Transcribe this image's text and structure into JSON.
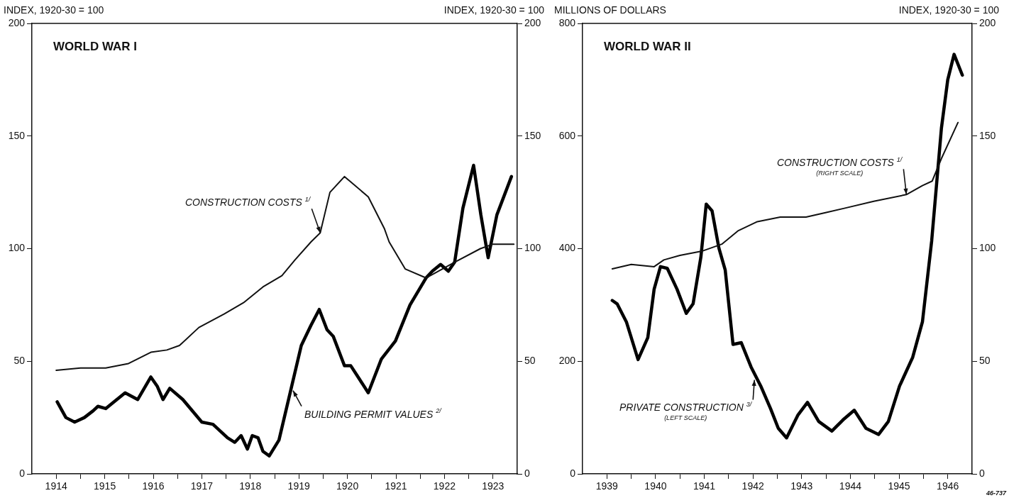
{
  "chart_data": [
    {
      "type": "line",
      "title": "WORLD WAR I",
      "ylabel": "INDEX, 1920-30 = 100",
      "y2label": "INDEX, 1920-30 = 100",
      "xlim": [
        1914,
        1924
      ],
      "xticks": [
        {
          "value": 1914.5,
          "label": "1914"
        },
        {
          "value": 1915,
          "label": null
        },
        {
          "value": 1915.5,
          "label": "1915"
        },
        {
          "value": 1916,
          "label": null
        },
        {
          "value": 1916.5,
          "label": "1916"
        },
        {
          "value": 1917,
          "label": null
        },
        {
          "value": 1917.5,
          "label": "1917"
        },
        {
          "value": 1918,
          "label": null
        },
        {
          "value": 1918.5,
          "label": "1918"
        },
        {
          "value": 1919,
          "label": null
        },
        {
          "value": 1919.5,
          "label": "1919"
        },
        {
          "value": 1920,
          "label": null
        },
        {
          "value": 1920.5,
          "label": "1920"
        },
        {
          "value": 1921,
          "label": null
        },
        {
          "value": 1921.5,
          "label": "1921"
        },
        {
          "value": 1922,
          "label": null
        },
        {
          "value": 1922.5,
          "label": "1922"
        },
        {
          "value": 1923,
          "label": null
        },
        {
          "value": 1923.5,
          "label": "1923"
        }
      ],
      "ylim": [
        0,
        200
      ],
      "yticks": [
        0,
        50,
        100,
        150,
        200
      ],
      "y2lim": [
        0,
        200
      ],
      "y2ticks": [
        0,
        50,
        100,
        150,
        200
      ],
      "annotations": [
        {
          "text": "CONSTRUCTION COSTS $^{1/}$",
          "x": 1919.94,
          "y": 107
        },
        {
          "text": "BUILDING PERMIT VALUES $^{2/}$",
          "x": 1919.38,
          "y": 37
        }
      ],
      "series": [
        {
          "color": "#111111",
          "x": [
            1914.5,
            1915,
            1915.52,
            1915.99,
            1916.45,
            1916.78,
            1917.04,
            1917.44,
            1917.96,
            1918.36,
            1918.76,
            1919.15,
            1919.42,
            1919.75,
            1919.94,
            1920.14,
            1920.44,
            1920.93,
            1921.26,
            1921.36,
            1921.69,
            1922.12,
            1922.71,
            1923.24,
            1923.5,
            1923.93
          ],
          "values": [
            46,
            47,
            47,
            49,
            54,
            55,
            57,
            65,
            71,
            76,
            83,
            88,
            95,
            103,
            107,
            125,
            132,
            123,
            109,
            103,
            91,
            87,
            94,
            100,
            102,
            102
          ]
        },
        {
          "color": "#000000",
          "x": [
            1914.52,
            1914.7,
            1914.88,
            1915.08,
            1915.26,
            1915.36,
            1915.52,
            1915.69,
            1915.92,
            1916.18,
            1916.45,
            1916.58,
            1916.7,
            1916.84,
            1917.11,
            1917.5,
            1917.73,
            1918.03,
            1918.18,
            1918.31,
            1918.44,
            1918.54,
            1918.66,
            1918.76,
            1918.89,
            1919.09,
            1919.32,
            1919.55,
            1919.75,
            1919.92,
            1920.08,
            1920.21,
            1920.44,
            1920.57,
            1920.93,
            1921.2,
            1921.49,
            1921.79,
            1922.12,
            1922.25,
            1922.42,
            1922.58,
            1922.71,
            1922.88,
            1923.1,
            1923.25,
            1923.4,
            1923.58,
            1923.88
          ],
          "values": [
            32,
            25,
            23,
            25,
            28,
            30,
            29,
            32,
            36,
            33,
            43,
            39,
            33,
            38,
            33,
            23,
            22,
            16,
            14,
            17,
            11,
            17,
            16,
            10,
            8,
            15,
            36,
            57,
            66,
            73,
            64,
            61,
            48,
            48,
            36,
            51,
            59,
            75,
            87,
            90,
            93,
            90,
            94,
            118,
            137,
            115,
            96,
            115,
            132
          ]
        }
      ]
    },
    {
      "type": "line",
      "title": "WORLD WAR II",
      "ylabel": "MILLIONS OF DOLLARS",
      "y2label": "INDEX, 1920-30 = 100",
      "xlim": [
        1939,
        1947
      ],
      "xticks": [
        {
          "value": 1939.5,
          "label": "1939"
        },
        {
          "value": 1940,
          "label": null
        },
        {
          "value": 1940.5,
          "label": "1940"
        },
        {
          "value": 1941,
          "label": null
        },
        {
          "value": 1941.5,
          "label": "1941"
        },
        {
          "value": 1942,
          "label": null
        },
        {
          "value": 1942.5,
          "label": "1942"
        },
        {
          "value": 1943,
          "label": null
        },
        {
          "value": 1943.5,
          "label": "1943"
        },
        {
          "value": 1944,
          "label": null
        },
        {
          "value": 1944.5,
          "label": "1944"
        },
        {
          "value": 1945,
          "label": null
        },
        {
          "value": 1945.5,
          "label": "1945"
        },
        {
          "value": 1946,
          "label": null
        },
        {
          "value": 1946.5,
          "label": "1946"
        }
      ],
      "ylim": [
        0,
        800
      ],
      "yticks": [
        0,
        200,
        400,
        600,
        800
      ],
      "y2lim": [
        0,
        200
      ],
      "y2ticks": [
        0,
        50,
        100,
        150,
        200
      ],
      "annotations": [
        {
          "text": "CONSTRUCTION COSTS $^{1/}$",
          "x": 1945.65,
          "y": 496
        },
        "(RIGHT SCALE)",
        {
          "text": "PRIVATE CONSTRUCTION $^{3/}$",
          "x": 1942.53,
          "y": 167
        },
        "(LEFT SCALE)",
        "46-737"
      ],
      "series": [
        {
          "color": "#111111",
          "axis": "y2",
          "x": [
            1939.61,
            1940,
            1940.47,
            1940.67,
            1941,
            1941.47,
            1941.86,
            1942.2,
            1942.59,
            1943.06,
            1943.59,
            1943.99,
            1944.39,
            1944.98,
            1945.65,
            1945.98,
            1946.18,
            1946.37,
            1946.71
          ],
          "values": [
            91,
            93,
            92,
            95,
            97,
            99,
            102,
            108,
            112,
            114,
            114,
            116,
            118,
            121,
            124,
            128,
            130,
            140,
            156
          ]
        },
        {
          "color": "#000000",
          "x": [
            1939.61,
            1939.71,
            1939.9,
            1940.14,
            1940.34,
            1940.47,
            1940.6,
            1940.74,
            1940.94,
            1941.13,
            1941.27,
            1941.43,
            1941.54,
            1941.66,
            1941.8,
            1941.93,
            1942.09,
            1942.26,
            1942.46,
            1942.66,
            1942.86,
            1943.02,
            1943.19,
            1943.42,
            1943.62,
            1943.85,
            1944.12,
            1944.35,
            1944.58,
            1944.82,
            1945.08,
            1945.28,
            1945.51,
            1945.78,
            1945.98,
            1946.17,
            1946.37,
            1946.5,
            1946.63,
            1946.8
          ],
          "values": [
            308,
            302,
            270,
            203,
            242,
            328,
            368,
            365,
            328,
            285,
            302,
            385,
            479,
            467,
            401,
            362,
            230,
            233,
            190,
            156,
            116,
            81,
            64,
            104,
            127,
            93,
            76,
            96,
            113,
            81,
            70,
            93,
            156,
            207,
            270,
            414,
            614,
            700,
            745,
            708
          ]
        }
      ]
    }
  ]
}
